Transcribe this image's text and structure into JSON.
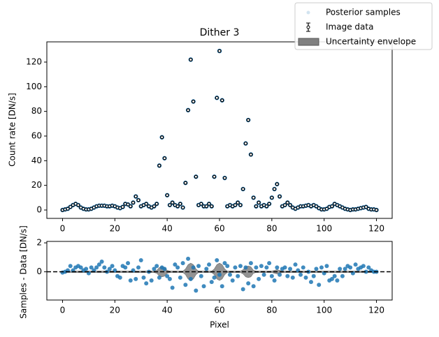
{
  "chart_data": [
    {
      "type": "scatter",
      "title": "Dither 3",
      "y_label": "Count rate [DN/s]",
      "x": [
        0,
        1,
        2,
        3,
        4,
        5,
        6,
        7,
        8,
        9,
        10,
        11,
        12,
        13,
        14,
        15,
        16,
        17,
        18,
        19,
        20,
        21,
        22,
        23,
        24,
        25,
        26,
        27,
        28,
        29,
        30,
        31,
        32,
        33,
        34,
        35,
        36,
        37,
        38,
        39,
        40,
        41,
        42,
        43,
        44,
        45,
        46,
        47,
        48,
        49,
        50,
        51,
        52,
        53,
        54,
        55,
        56,
        57,
        58,
        59,
        60,
        61,
        62,
        63,
        64,
        65,
        66,
        67,
        68,
        69,
        70,
        71,
        72,
        73,
        74,
        75,
        76,
        77,
        78,
        79,
        80,
        81,
        82,
        83,
        84,
        85,
        86,
        87,
        88,
        89,
        90,
        91,
        92,
        93,
        94,
        95,
        96,
        97,
        98,
        99,
        100,
        101,
        102,
        103,
        104,
        105,
        106,
        107,
        108,
        109,
        110,
        111,
        112,
        113,
        114,
        115,
        116,
        117,
        118,
        119,
        120
      ],
      "series": [
        {
          "name": "Image data",
          "color": "#000000",
          "values": [
            0,
            0.5,
            1,
            2.5,
            4,
            5,
            4,
            2,
            1,
            0.5,
            0.5,
            1,
            2,
            3,
            3.5,
            3.5,
            3.5,
            3,
            3,
            3.5,
            3,
            2,
            1.5,
            2.5,
            5,
            4.5,
            3,
            6,
            11,
            8,
            3,
            4,
            5,
            3,
            2,
            3,
            5,
            36,
            59,
            42,
            12,
            4,
            6,
            4,
            3,
            5,
            2,
            22,
            81,
            122,
            88,
            27,
            4,
            5,
            3,
            3,
            5,
            3,
            27,
            91,
            129,
            89,
            26,
            3,
            4,
            3,
            4,
            6,
            4,
            17,
            54,
            73,
            45,
            10,
            3,
            6,
            3,
            4,
            3,
            5,
            10,
            17,
            21,
            11,
            3,
            4,
            6,
            4,
            2,
            1,
            2,
            3,
            3,
            3.5,
            4,
            3,
            4,
            3,
            1.5,
            0.5,
            0.5,
            1,
            2.5,
            3,
            5,
            4,
            3,
            2,
            1,
            0.5,
            0,
            0.5,
            0.5,
            1,
            1.5,
            2,
            2.5,
            1,
            0.5,
            0.5,
            0
          ]
        }
      ],
      "xlim": [
        -6,
        126
      ],
      "ylim": [
        -6.8,
        136.4
      ],
      "xticks": [
        0,
        20,
        40,
        60,
        80,
        100,
        120
      ],
      "yticks": [
        0,
        20,
        40,
        60,
        80,
        100,
        120
      ]
    },
    {
      "type": "scatter",
      "x_label": "Pixel",
      "y_label": "Samples - Data [DN/s]",
      "x": [
        0,
        1,
        2,
        3,
        4,
        5,
        6,
        7,
        8,
        9,
        10,
        11,
        12,
        13,
        14,
        15,
        16,
        17,
        18,
        19,
        20,
        21,
        22,
        23,
        24,
        25,
        26,
        27,
        28,
        29,
        30,
        31,
        32,
        33,
        34,
        35,
        36,
        37,
        38,
        39,
        40,
        41,
        42,
        43,
        44,
        45,
        46,
        47,
        48,
        49,
        50,
        51,
        52,
        53,
        54,
        55,
        56,
        57,
        58,
        59,
        60,
        61,
        62,
        63,
        64,
        65,
        66,
        67,
        68,
        69,
        70,
        71,
        72,
        73,
        74,
        75,
        76,
        77,
        78,
        79,
        80,
        81,
        82,
        83,
        84,
        85,
        86,
        87,
        88,
        89,
        90,
        91,
        92,
        93,
        94,
        95,
        96,
        97,
        98,
        99,
        100,
        101,
        102,
        103,
        104,
        105,
        106,
        107,
        108,
        109,
        110,
        111,
        112,
        113,
        114,
        115,
        116,
        117,
        118,
        119,
        120
      ],
      "series": [
        {
          "name": "Posterior samples",
          "color": "#1f77b4",
          "values": [
            -0.05,
            0,
            0.1,
            0.4,
            0.1,
            0.3,
            0.4,
            0.3,
            0.1,
            0.2,
            -0.1,
            0.3,
            0.1,
            0.3,
            0.5,
            0.7,
            0.3,
            0,
            0.2,
            0.4,
            0.1,
            -0.3,
            -0.4,
            0.4,
            0.3,
            0.6,
            -0.6,
            0.1,
            -0.5,
            0.3,
            0.8,
            -0.4,
            -0.8,
            0,
            -0.6,
            0.2,
            0.4,
            -0.4,
            0.3,
            0.2,
            -0.3,
            -0.5,
            -1.1,
            0.5,
            0.3,
            -0.4,
            0.6,
            -0.9,
            0.9,
            -0.5,
            0.3,
            -1.3,
            0.4,
            -0.3,
            -1,
            0.2,
            0.5,
            -0.7,
            -0.4,
            0.8,
            -0.2,
            -1,
            0.6,
            0.4,
            -0.2,
            -0.6,
            0.3,
            -0.3,
            0.4,
            -1.2,
            0.3,
            -0.8,
            0.6,
            -1,
            0.3,
            -0.5,
            0.4,
            -0.2,
            0.3,
            0.6,
            -0.3,
            -0.6,
            0.3,
            -0.2,
            0.2,
            0.3,
            -0.3,
            0.2,
            -0.4,
            0.5,
            0.1,
            -0.2,
            0.3,
            -0.4,
            0,
            -0.7,
            -0.3,
            0.2,
            -0.9,
            0.3,
            -0.1,
            0.4,
            -0.6,
            -0.5,
            -0.3,
            -0.6,
            0.2,
            -0.3,
            0.2,
            0.4,
            0.3,
            -0.1,
            0.5,
            0.2,
            0.3,
            0.4,
            0,
            0.3,
            0.1,
            0,
            0
          ]
        },
        {
          "name": "Uncertainty envelope",
          "color": "#808080",
          "values": [
            0.05,
            0.05,
            0.05,
            0.05,
            0.05,
            0.05,
            0.05,
            0.05,
            0.05,
            0.05,
            0.05,
            0.05,
            0.05,
            0.05,
            0.05,
            0.05,
            0.05,
            0.05,
            0.05,
            0.05,
            0.05,
            0.05,
            0.05,
            0.05,
            0.05,
            0.05,
            0.05,
            0.05,
            0.05,
            0.05,
            0.05,
            0.05,
            0.05,
            0.05,
            0.05,
            0.05,
            0.1,
            0.3,
            0.35,
            0.3,
            0.1,
            0.05,
            0.05,
            0.05,
            0.05,
            0.05,
            0.05,
            0.2,
            0.5,
            0.6,
            0.5,
            0.2,
            0.05,
            0.05,
            0.05,
            0.05,
            0.05,
            0.05,
            0.2,
            0.5,
            0.6,
            0.5,
            0.2,
            0.05,
            0.05,
            0.05,
            0.05,
            0.05,
            0.05,
            0.15,
            0.35,
            0.4,
            0.35,
            0.1,
            0.05,
            0.05,
            0.05,
            0.05,
            0.05,
            0.05,
            0.05,
            0.1,
            0.15,
            0.1,
            0.05,
            0.05,
            0.05,
            0.05,
            0.05,
            0.05,
            0.05,
            0.05,
            0.05,
            0.05,
            0.05,
            0.05,
            0.05,
            0.05,
            0.05,
            0.05,
            0.05,
            0.05,
            0.05,
            0.05,
            0.05,
            0.05,
            0.05,
            0.05,
            0.05,
            0.05,
            0.05,
            0.05,
            0.05,
            0.05,
            0.05,
            0.05,
            0.05,
            0.05,
            0.05,
            0.05,
            0.05
          ]
        }
      ],
      "xlim": [
        -6,
        126
      ],
      "ylim": [
        -1.95,
        2.1
      ],
      "xticks": [
        0,
        20,
        40,
        60,
        80,
        100,
        120
      ],
      "yticks": [
        0,
        2
      ]
    }
  ]
}
